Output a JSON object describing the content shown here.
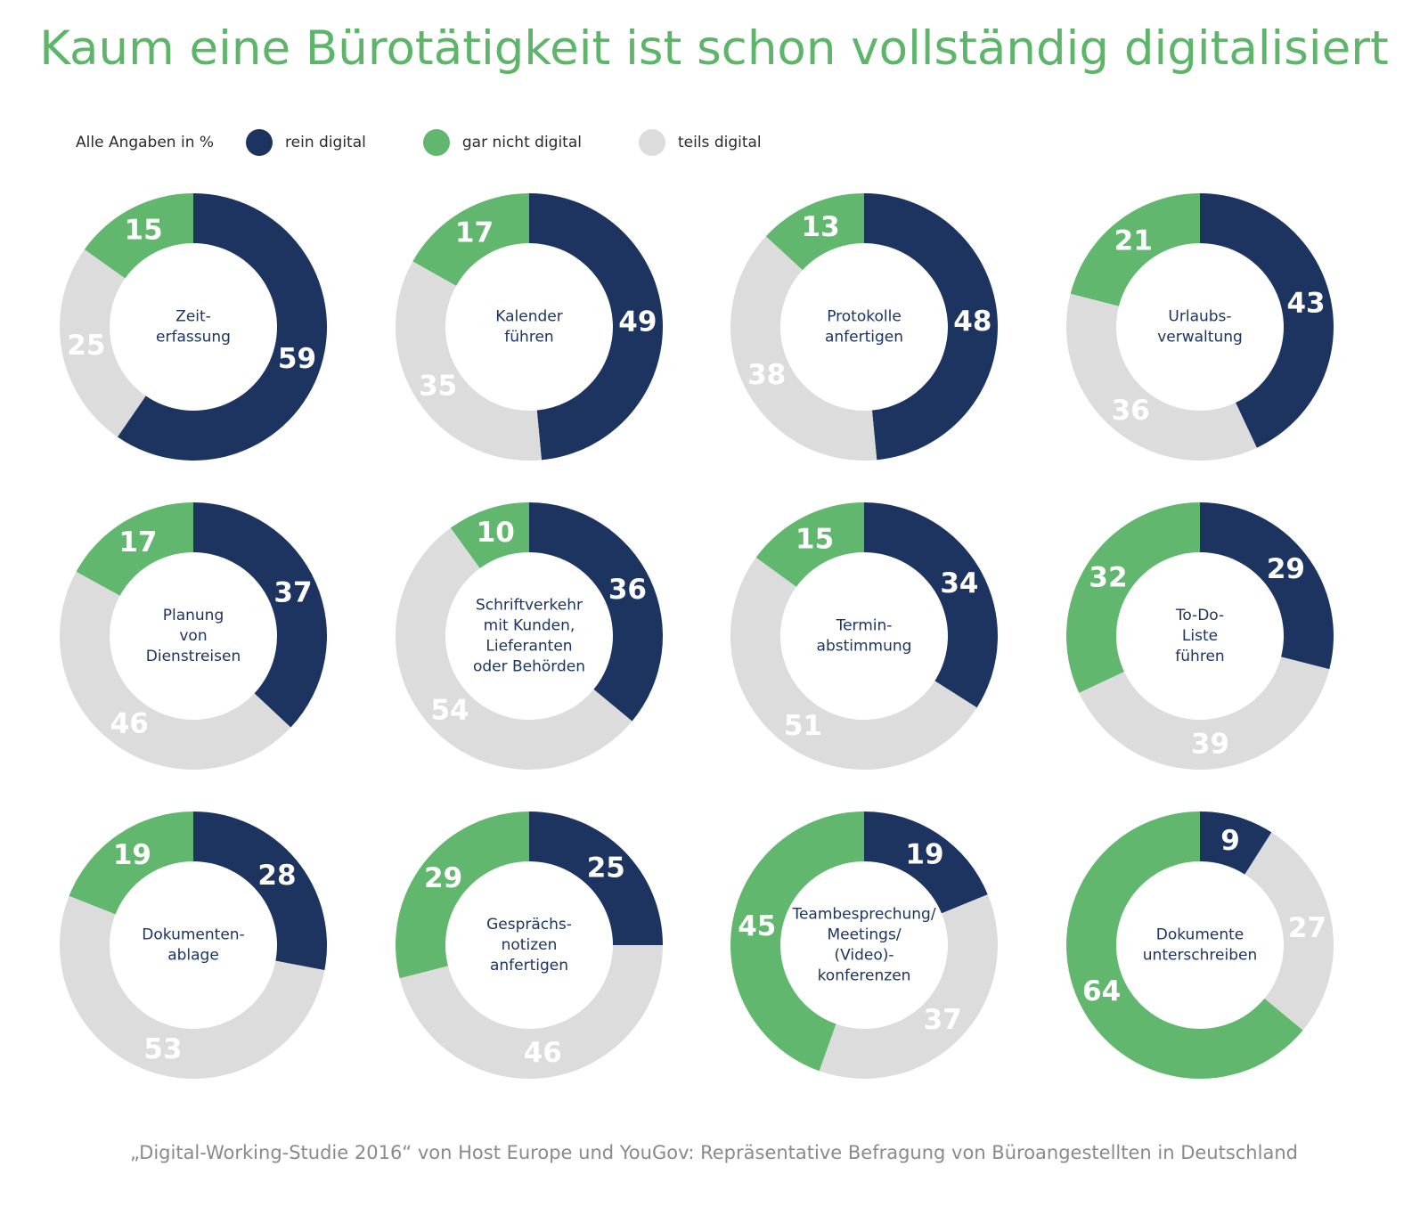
{
  "title": "Kaum eine Bürotätigkeit ist schon vollständig digitalisiert",
  "legend": {
    "note": "Alle Angaben in %",
    "items": [
      {
        "label": "rein digital",
        "color": "#1d3461"
      },
      {
        "label": "gar nicht digital",
        "color": "#62b76e"
      },
      {
        "label": "teils digital",
        "color": "#dcdcdc"
      }
    ]
  },
  "source": "„Digital-Working-Studie 2016“ von Host Europe und YouGov: Repräsentative Befragung von Büroangestellten in Deutschland",
  "chart_data": {
    "type": "pie",
    "variant": "donut",
    "series_names": [
      "rein digital",
      "gar nicht digital",
      "teils digital"
    ],
    "colors": [
      "#1d3461",
      "#62b76e",
      "#dcdcdc"
    ],
    "legend_position": "top-left",
    "charts": [
      {
        "label": [
          "Zeit-",
          "erfassung"
        ],
        "values": [
          59,
          15,
          25
        ]
      },
      {
        "label": [
          "Kalender",
          "führen"
        ],
        "values": [
          49,
          17,
          35
        ]
      },
      {
        "label": [
          "Protokolle",
          "anfertigen"
        ],
        "values": [
          48,
          13,
          38
        ]
      },
      {
        "label": [
          "Urlaubs-",
          "verwaltung"
        ],
        "values": [
          43,
          21,
          36
        ]
      },
      {
        "label": [
          "Planung",
          "von",
          "Dienstreisen"
        ],
        "values": [
          37,
          17,
          46
        ]
      },
      {
        "label": [
          "Schriftverkehr",
          "mit Kunden,",
          "Lieferanten",
          "oder Behörden"
        ],
        "values": [
          36,
          10,
          54
        ]
      },
      {
        "label": [
          "Termin-",
          "abstimmung"
        ],
        "values": [
          34,
          15,
          51
        ]
      },
      {
        "label": [
          "To-Do-",
          "Liste",
          "führen"
        ],
        "values": [
          29,
          32,
          39
        ]
      },
      {
        "label": [
          "Dokumenten-",
          "ablage"
        ],
        "values": [
          28,
          19,
          53
        ]
      },
      {
        "label": [
          "Gesprächs-",
          "notizen",
          "anfertigen"
        ],
        "values": [
          25,
          29,
          46
        ]
      },
      {
        "label": [
          "Teambesprechung/",
          "Meetings/",
          "(Video)-",
          "konferenzen"
        ],
        "values": [
          19,
          45,
          37
        ]
      },
      {
        "label": [
          "Dokumente",
          "unterschreiben"
        ],
        "values": [
          9,
          64,
          27
        ]
      }
    ]
  }
}
